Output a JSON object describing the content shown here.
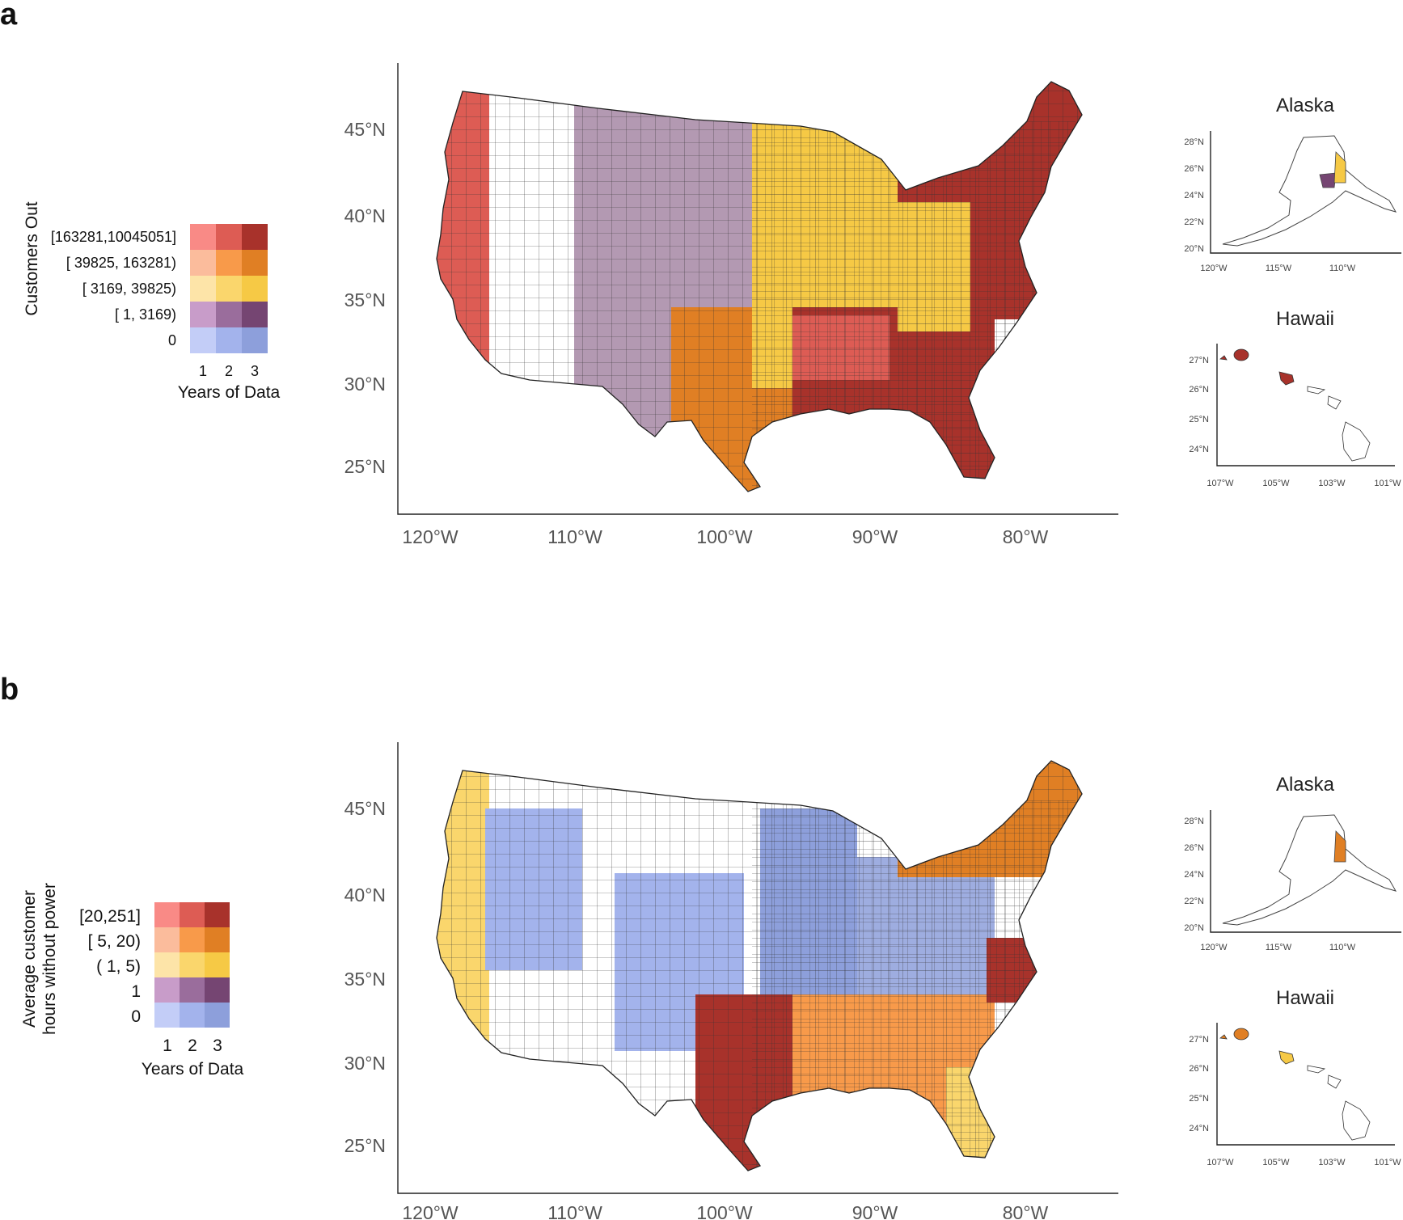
{
  "panels": [
    {
      "letter": "a",
      "legend": {
        "title": "Customers Out",
        "rows": [
          "[163281,10045051]",
          "[ 39825,  163281)",
          "[  3169,   39825)",
          "[      1,     3169)",
          "0"
        ],
        "columns": [
          "1",
          "2",
          "3"
        ],
        "xlabel": "Years of Data"
      },
      "map": {
        "lat_ticks": [
          "45°N",
          "40°N",
          "35°N",
          "30°N",
          "25°N"
        ],
        "lon_ticks": [
          "120°W",
          "110°W",
          "100°W",
          "90°W",
          "80°W"
        ]
      },
      "alaska": {
        "title": "Alaska",
        "lat_ticks": [
          "28°N",
          "26°N",
          "24°N",
          "22°N",
          "20°N"
        ],
        "lon_ticks": [
          "120°W",
          "115°W",
          "110°W"
        ]
      },
      "hawaii": {
        "title": "Hawaii",
        "lat_ticks": [
          "27°N",
          "26°N",
          "25°N",
          "24°N"
        ],
        "lon_ticks": [
          "107°W",
          "105°W",
          "103°W",
          "101°W"
        ]
      }
    },
    {
      "letter": "b",
      "legend": {
        "title_line1": "Average customer",
        "title_line2": "hours without power",
        "rows": [
          "[20,251]",
          "[   5, 20)",
          "(   1, 5)",
          "1",
          "0"
        ],
        "columns": [
          "1",
          "2",
          "3"
        ],
        "xlabel": "Years of Data"
      },
      "map": {
        "lat_ticks": [
          "45°N",
          "40°N",
          "35°N",
          "30°N",
          "25°N"
        ],
        "lon_ticks": [
          "120°W",
          "110°W",
          "100°W",
          "90°W",
          "80°W"
        ]
      },
      "alaska": {
        "title": "Alaska",
        "lat_ticks": [
          "28°N",
          "26°N",
          "24°N",
          "22°N",
          "20°N"
        ],
        "lon_ticks": [
          "120°W",
          "115°W",
          "110°W"
        ]
      },
      "hawaii": {
        "title": "Hawaii",
        "lat_ticks": [
          "27°N",
          "26°N",
          "25°N",
          "24°N"
        ],
        "lon_ticks": [
          "107°W",
          "105°W",
          "103°W",
          "101°W"
        ]
      }
    }
  ],
  "palette": {
    "bivariate": [
      [
        "#f98a86",
        "#dd5c54",
        "#a8322b"
      ],
      [
        "#fbbc9c",
        "#f89a4a",
        "#e07f24"
      ],
      [
        "#fde4a8",
        "#fad66c",
        "#f6c945"
      ],
      [
        "#c89cc9",
        "#9a6d9c",
        "#754572"
      ],
      [
        "#c3cdf7",
        "#a3b3ec",
        "#8d9fdb"
      ]
    ]
  },
  "regions": {
    "a": {
      "northeast": "#a8322b",
      "southeast": "#a8322b",
      "midwest": "#f6c945",
      "plains": "#754572",
      "west": "#ffffff",
      "pacific": "#dd5c54",
      "texas": "#e07f24"
    },
    "b": {
      "northeast": "#e07f24",
      "southeast": "#f89a4a",
      "midwest": "#8d9fdb",
      "plains": "#a3b3ec",
      "west": "#ffffff",
      "pacific": "#fad66c",
      "texas": "#a8322b"
    }
  }
}
